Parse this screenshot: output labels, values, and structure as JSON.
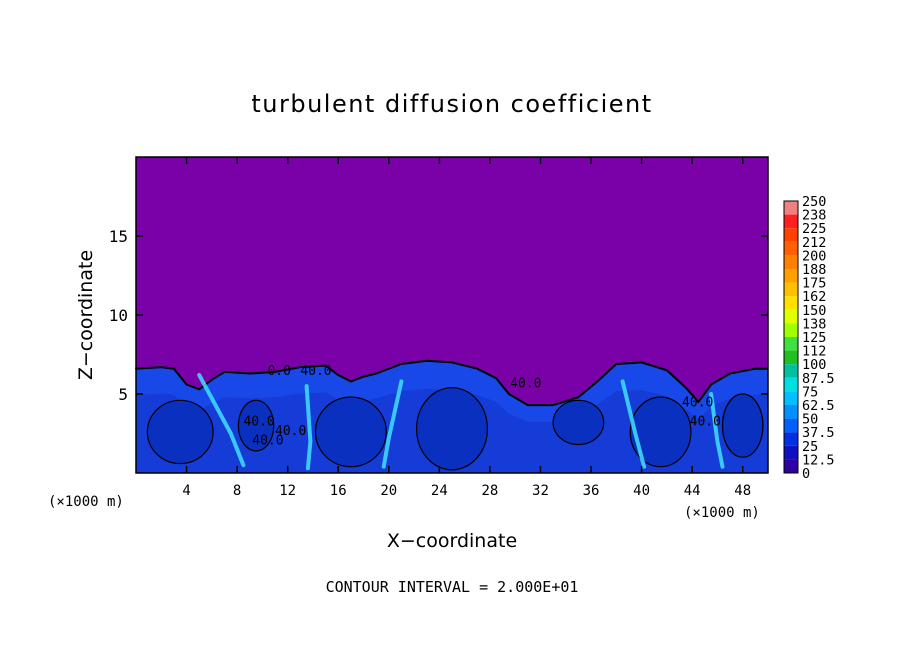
{
  "chart_data": {
    "type": "heatmap",
    "title": "turbulent diffusion coefficient",
    "xlabel": "X−coordinate",
    "ylabel": "Z−coordinate",
    "x_unit_left": "(×1000 m)",
    "x_unit_right": "(×1000 m)",
    "footer": "CONTOUR INTERVAL = 2.000E+01",
    "xlim": [
      0,
      50
    ],
    "ylim": [
      0,
      20
    ],
    "xticks": [
      4,
      8,
      12,
      16,
      20,
      24,
      28,
      32,
      36,
      40,
      44,
      48
    ],
    "yticks": [
      5,
      10,
      15
    ],
    "colorbar": {
      "labels": [
        "250",
        "238",
        "225",
        "212",
        "200",
        "188",
        "175",
        "162",
        "150",
        "138",
        "125",
        "112",
        "100",
        "87.5",
        "75",
        "62.5",
        "50",
        "37.5",
        "25",
        "12.5",
        "0"
      ],
      "colors": [
        "#f08080",
        "#ff2020",
        "#ff4000",
        "#ff6000",
        "#ff8000",
        "#ffa000",
        "#ffc000",
        "#ffe000",
        "#e0ff00",
        "#a0ff00",
        "#40e040",
        "#20c020",
        "#00c0a0",
        "#00e0e0",
        "#00c0ff",
        "#0090ff",
        "#0060ff",
        "#0030e0",
        "#1010c0",
        "#3000a0"
      ]
    },
    "contour_labels": [
      "0.0",
      "40.0",
      "40.0",
      "40.0",
      "40.0",
      "40.0",
      "40.0",
      "40.0"
    ],
    "background_color": "#7a00a8",
    "field_color": "#1848e8"
  }
}
